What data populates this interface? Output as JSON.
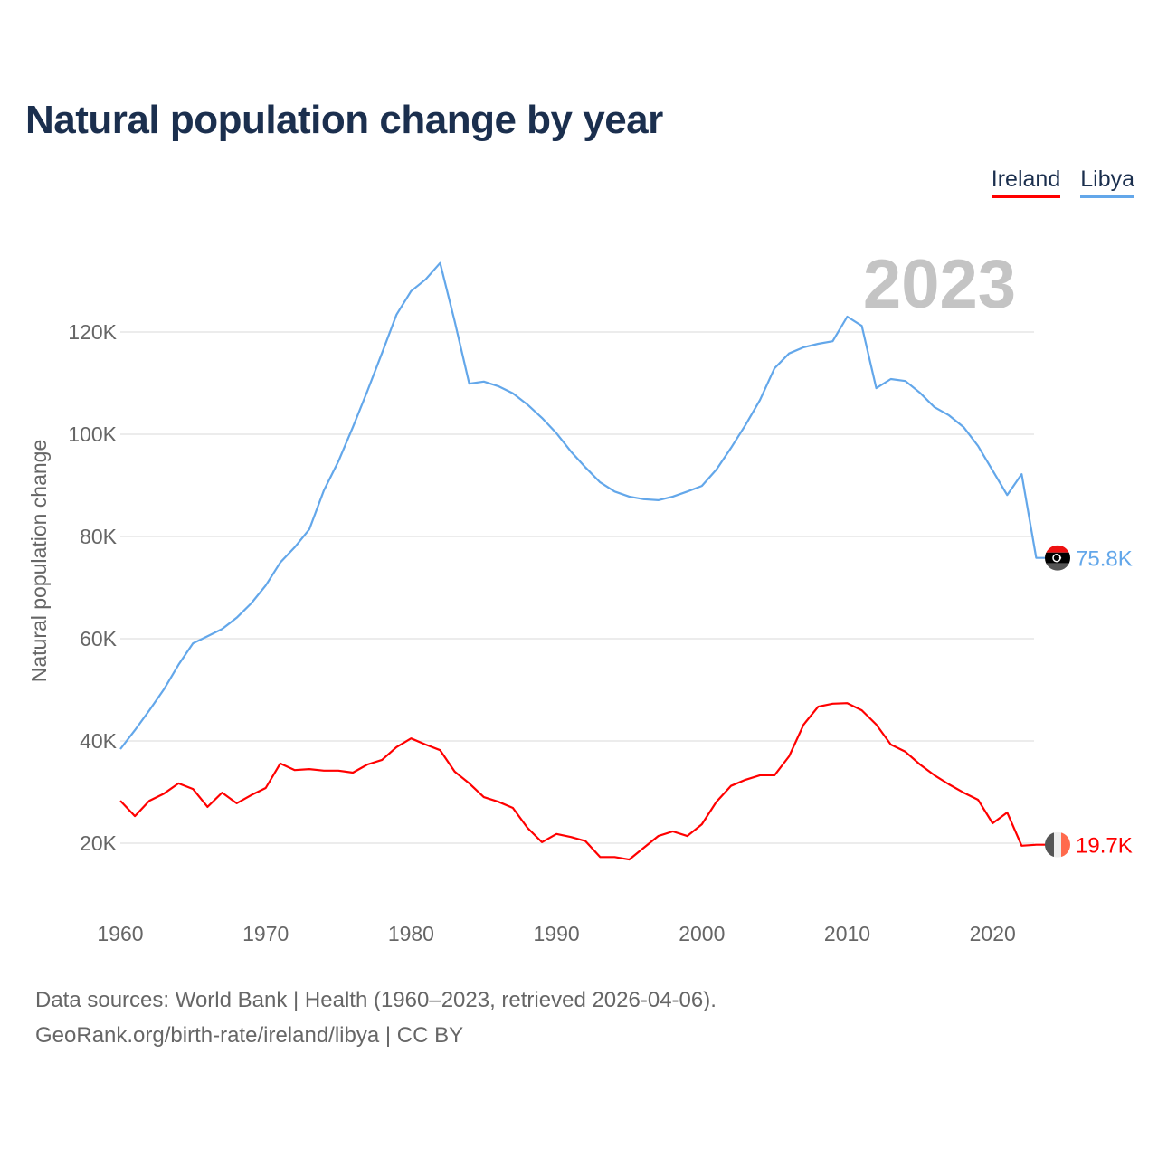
{
  "title": "Natural population change by year",
  "legend": [
    {
      "label": "Ireland",
      "color": "#ff0000"
    },
    {
      "label": "Libya",
      "color": "#63a7ea"
    }
  ],
  "year_overlay": "2023",
  "footer": {
    "line1": "Data sources: World Bank | Health (1960–2023, retrieved 2026-04-06).",
    "line2": "GeoRank.org/birth-rate/ireland/libya | CC BY"
  },
  "chart_data": {
    "type": "line",
    "title": "Natural population change by year",
    "xlabel": "",
    "ylabel": "Natural population change",
    "x_ticks": [
      1960,
      1970,
      1980,
      1990,
      2000,
      2010,
      2020
    ],
    "x_tick_labels": [
      "1960",
      "1970",
      "1980",
      "1990",
      "2000",
      "2010",
      "2020"
    ],
    "y_ticks": [
      20,
      40,
      60,
      80,
      100,
      120
    ],
    "y_tick_labels": [
      "20K",
      "40K",
      "60K",
      "80K",
      "100K",
      "120K"
    ],
    "xlim": [
      1960,
      2023
    ],
    "ylim_thousands": [
      20,
      120
    ],
    "grid": true,
    "legend_placement": "top-right",
    "x_start": 1960,
    "series": [
      {
        "name": "Ireland",
        "color": "#ff0000",
        "end_label": "19.7K",
        "flag": "ireland-flag",
        "values": [
          28.3,
          25.3,
          28.3,
          29.7,
          31.7,
          30.6,
          27.1,
          29.9,
          27.8,
          29.4,
          30.8,
          35.6,
          34.3,
          34.5,
          34.2,
          34.2,
          33.8,
          35.4,
          36.3,
          38.8,
          40.5,
          39.3,
          38.2,
          34.0,
          31.7,
          29.0,
          28.1,
          26.9,
          23.0,
          20.2,
          21.8,
          21.2,
          20.4,
          17.3,
          17.3,
          16.8,
          19.1,
          21.4,
          22.3,
          21.4,
          23.7,
          28.1,
          31.2,
          32.4,
          33.3,
          33.3,
          37.0,
          43.2,
          46.7,
          47.3,
          47.4,
          46.0,
          43.2,
          39.3,
          37.9,
          35.4,
          33.3,
          31.5,
          29.9,
          28.5,
          23.9,
          26.0,
          19.5,
          19.7
        ]
      },
      {
        "name": "Libya",
        "color": "#63a7ea",
        "end_label": "75.8K",
        "flag": "libya-flag",
        "values": [
          38.4,
          42.1,
          46.0,
          50.1,
          54.9,
          59.1,
          60.5,
          61.9,
          64.1,
          66.9,
          70.4,
          74.9,
          77.9,
          81.4,
          89.0,
          94.7,
          101.4,
          108.5,
          115.9,
          123.4,
          128.0,
          130.3,
          133.5,
          122.1,
          109.9,
          110.3,
          109.4,
          108.0,
          105.8,
          103.2,
          100.2,
          96.6,
          93.5,
          90.6,
          88.8,
          87.8,
          87.3,
          87.1,
          87.8,
          88.8,
          89.9,
          93.1,
          97.3,
          101.8,
          106.7,
          112.9,
          115.8,
          117.0,
          117.7,
          118.2,
          123.0,
          121.2,
          109.0,
          110.8,
          110.4,
          108.1,
          105.3,
          103.7,
          101.4,
          97.7,
          92.9,
          88.1,
          92.2,
          75.8
        ]
      }
    ]
  }
}
